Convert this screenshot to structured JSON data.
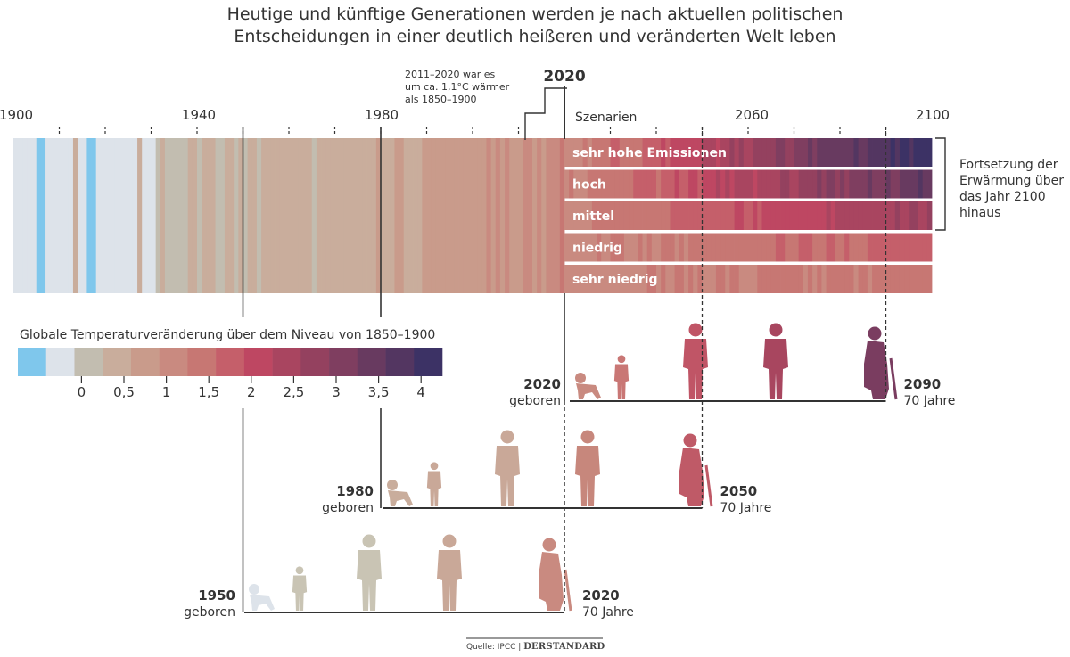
{
  "title_line1": "Heutige und künftige Generationen werden je nach aktuellen politischen",
  "title_line2": "Entscheidungen in einer deutlich heißeren und veränderten Welt leben",
  "note": [
    "2011–2020 war es",
    "um ca. 1,1°C wärmer",
    "als 1850–1900"
  ],
  "marker_2020": "2020",
  "scenarios_label": "Szenarien",
  "continuation_note": [
    "Fortsetzung der",
    "Erwärmung über",
    "das Jahr 2100",
    "hinaus"
  ],
  "legend_title": "Globale Temperaturveränderung über dem Niveau von 1850–1900",
  "source_text": "Quelle: IPCC |",
  "source_brand": "DERSTANDARD",
  "colors": {
    "scale": [
      "#7fc7ec",
      "#dde3ea",
      "#c2bdb0",
      "#c9ad9c",
      "#c99b8b",
      "#c98a80",
      "#c77773",
      "#c55f6a",
      "#be4762",
      "#a94560",
      "#94415f",
      "#7f3e60",
      "#683a60",
      "#533661",
      "#3c3265"
    ],
    "axis": "#333333"
  },
  "icons": [
    "baby-icon",
    "child-icon",
    "adult-icon",
    "middle-aged-icon",
    "elderly-icon"
  ],
  "chart_data": {
    "type": "heatmap",
    "x_axis": {
      "ticks": [
        "1900",
        "1940",
        "1980",
        "2060",
        "2100"
      ],
      "range": [
        1900,
        2100
      ]
    },
    "legend": {
      "ticks": [
        "0",
        "0,5",
        "1",
        "1,5",
        "2",
        "2,5",
        "3",
        "3,5",
        "4"
      ],
      "range": [
        -0.75,
        4.25
      ],
      "unit": "°C"
    },
    "observed": {
      "start": 1900,
      "end": 2020
    },
    "scenarios": [
      {
        "name": "sehr hohe Emissionen",
        "warming_2020": 1.1,
        "warming_2100": 4.2
      },
      {
        "name": "hoch",
        "warming_2020": 1.1,
        "warming_2100": 3.6
      },
      {
        "name": "mittel",
        "warming_2020": 1.1,
        "warming_2100": 2.7
      },
      {
        "name": "niedrig",
        "warming_2020": 1.1,
        "warming_2100": 1.8
      },
      {
        "name": "sehr niedrig",
        "warming_2020": 1.1,
        "warming_2100": 1.4
      }
    ],
    "generations": [
      {
        "born_year": "2020",
        "born_label": "geboren",
        "end_year": "2090",
        "end_label": "70 Jahre"
      },
      {
        "born_year": "1980",
        "born_label": "geboren",
        "end_year": "2050",
        "end_label": "70 Jahre"
      },
      {
        "born_year": "1950",
        "born_label": "geboren",
        "end_year": "2020",
        "end_label": "70 Jahre"
      }
    ]
  }
}
